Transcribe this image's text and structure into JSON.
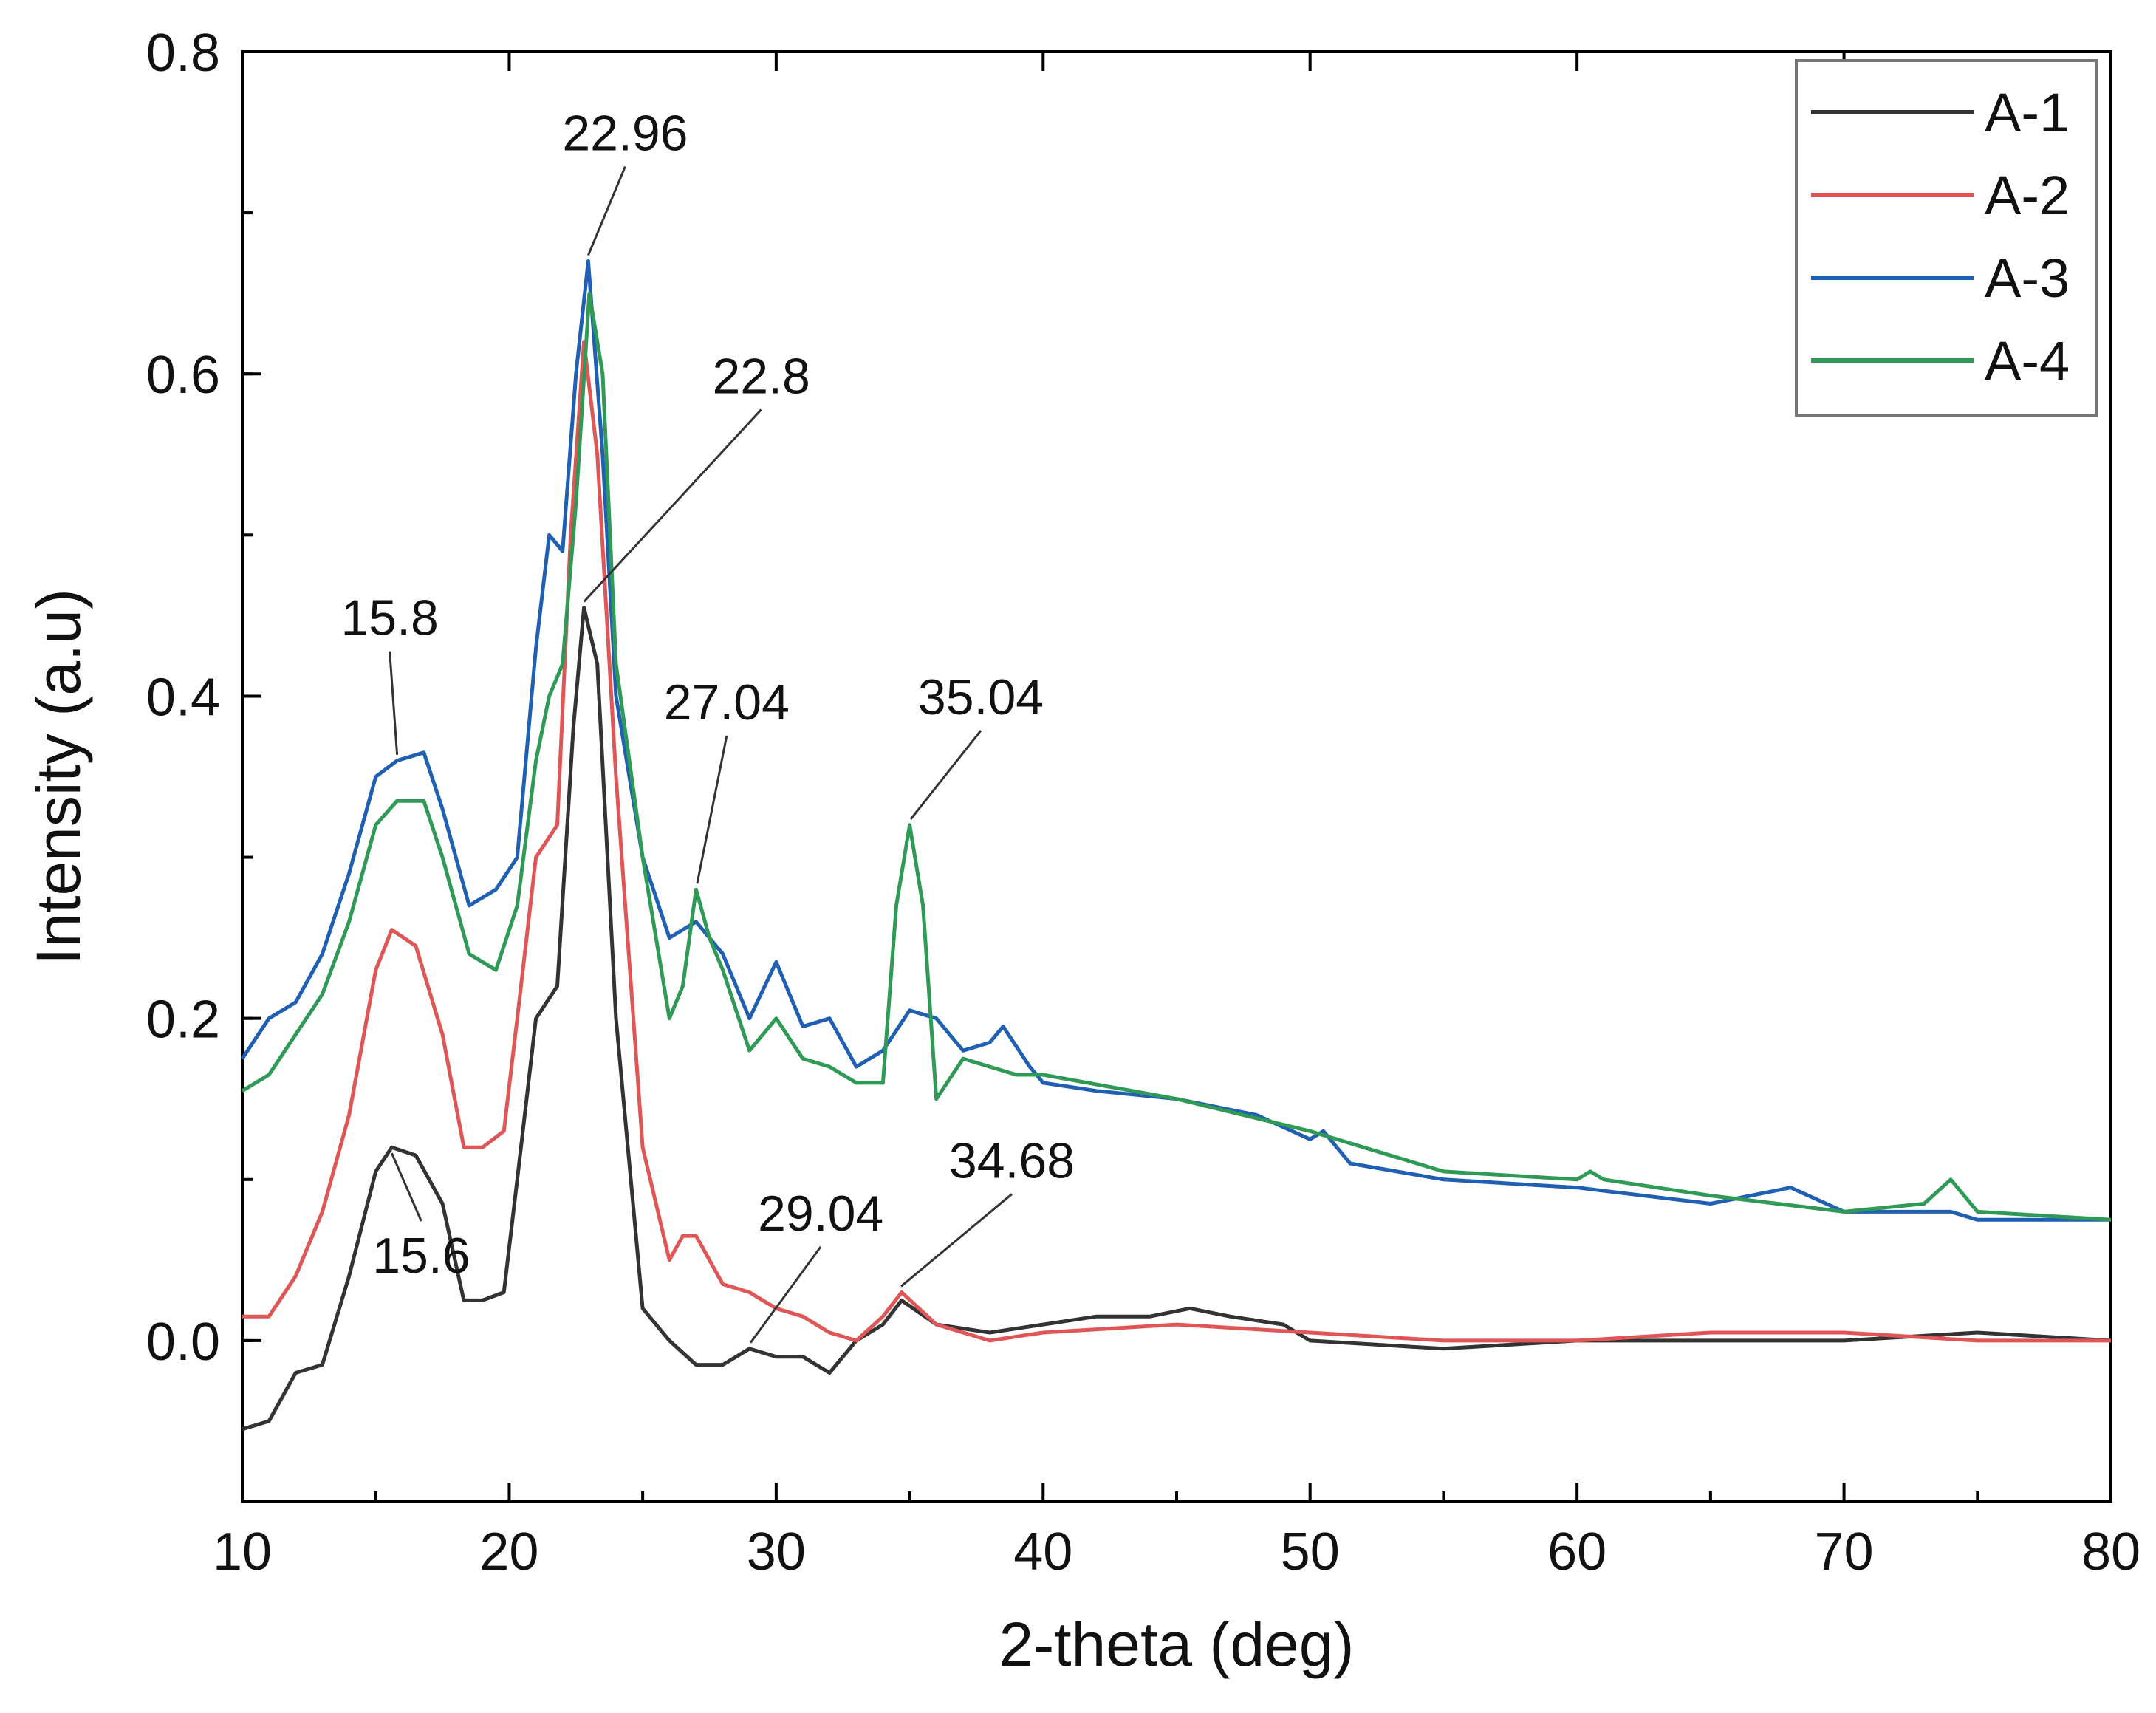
{
  "chart_data": {
    "type": "line",
    "xlabel": "2-theta (deg)",
    "ylabel": "Intensity (a.u)",
    "xlim": [
      10,
      80
    ],
    "ylim": [
      -0.1,
      0.8
    ],
    "xticks": [
      10,
      20,
      30,
      40,
      50,
      60,
      70,
      80
    ],
    "yticks": [
      0.0,
      0.2,
      0.4,
      0.6,
      0.8
    ],
    "ytick_labels": [
      "0.0",
      "0.2",
      "0.4",
      "0.6",
      "0.8"
    ],
    "legend": {
      "position": "top-right"
    },
    "series": [
      {
        "name": "A-1",
        "color": "#333333",
        "x": [
          10,
          11,
          12,
          13,
          14,
          15,
          15.6,
          16.5,
          17.5,
          18.3,
          19,
          19.8,
          20.3,
          21,
          21.8,
          22.4,
          22.8,
          23.3,
          24,
          25,
          26,
          27,
          28,
          29,
          30,
          31,
          32,
          33,
          34,
          34.7,
          36,
          38,
          40,
          42,
          44,
          45.5,
          47,
          49,
          50,
          55,
          60,
          65,
          70,
          75,
          80
        ],
        "y": [
          -0.055,
          -0.05,
          -0.02,
          -0.015,
          0.04,
          0.105,
          0.12,
          0.115,
          0.085,
          0.025,
          0.025,
          0.03,
          0.1,
          0.2,
          0.22,
          0.38,
          0.455,
          0.42,
          0.2,
          0.02,
          0.0,
          -0.015,
          -0.015,
          -0.005,
          -0.01,
          -0.01,
          -0.02,
          0.0,
          0.01,
          0.025,
          0.01,
          0.005,
          0.01,
          0.015,
          0.015,
          0.02,
          0.015,
          0.01,
          0.0,
          -0.005,
          0.0,
          0.0,
          0.0,
          0.005,
          0.0
        ]
      },
      {
        "name": "A-2",
        "color": "#e05555",
        "x": [
          10,
          11,
          12,
          13,
          14,
          15,
          15.6,
          16.5,
          17.5,
          18.3,
          19,
          19.8,
          20.3,
          21,
          21.8,
          22.3,
          22.8,
          23.3,
          24,
          25,
          26,
          26.5,
          27,
          28,
          29,
          30,
          31,
          32,
          33,
          34,
          34.7,
          36,
          38,
          40,
          45,
          50,
          55,
          60,
          65,
          70,
          75,
          80
        ],
        "y": [
          0.015,
          0.015,
          0.04,
          0.08,
          0.14,
          0.23,
          0.255,
          0.245,
          0.19,
          0.12,
          0.12,
          0.13,
          0.2,
          0.3,
          0.32,
          0.5,
          0.62,
          0.55,
          0.35,
          0.12,
          0.05,
          0.065,
          0.065,
          0.035,
          0.03,
          0.02,
          0.015,
          0.005,
          0.0,
          0.015,
          0.03,
          0.01,
          0.0,
          0.005,
          0.01,
          0.005,
          0.0,
          0.0,
          0.005,
          0.005,
          0.0,
          0.0
        ]
      },
      {
        "name": "A-3",
        "color": "#1f5fb4",
        "x": [
          10,
          11,
          12,
          13,
          14,
          15,
          15.8,
          16.8,
          17.5,
          18.5,
          19.5,
          20.3,
          21,
          21.5,
          22,
          22.5,
          22.96,
          23.5,
          24,
          25,
          26,
          27,
          28,
          29,
          30,
          31,
          32,
          33,
          34,
          35,
          36,
          37,
          38,
          38.5,
          39.5,
          40,
          42,
          45,
          48,
          50,
          50.5,
          51.5,
          55,
          60,
          65,
          68,
          70,
          74,
          75,
          80
        ],
        "y": [
          0.175,
          0.2,
          0.21,
          0.24,
          0.29,
          0.35,
          0.36,
          0.365,
          0.33,
          0.27,
          0.28,
          0.3,
          0.43,
          0.5,
          0.49,
          0.6,
          0.67,
          0.55,
          0.4,
          0.3,
          0.25,
          0.26,
          0.24,
          0.2,
          0.235,
          0.195,
          0.2,
          0.17,
          0.18,
          0.205,
          0.2,
          0.18,
          0.185,
          0.195,
          0.17,
          0.16,
          0.155,
          0.15,
          0.14,
          0.125,
          0.13,
          0.11,
          0.1,
          0.095,
          0.085,
          0.095,
          0.08,
          0.08,
          0.075,
          0.075
        ]
      },
      {
        "name": "A-4",
        "color": "#2f9a55",
        "x": [
          10,
          11,
          12,
          13,
          14,
          15,
          15.8,
          16.8,
          17.5,
          18.5,
          19.5,
          20.3,
          21,
          21.5,
          22,
          22.5,
          23,
          23.5,
          24,
          25,
          26,
          26.5,
          27,
          27.5,
          28,
          29,
          30,
          31,
          32,
          33,
          34,
          34.5,
          35,
          35.5,
          36,
          37,
          38,
          39,
          40,
          45,
          50,
          55,
          60,
          60.5,
          61,
          65,
          70,
          73,
          74,
          75,
          80
        ],
        "y": [
          0.155,
          0.165,
          0.19,
          0.215,
          0.26,
          0.32,
          0.335,
          0.335,
          0.3,
          0.24,
          0.23,
          0.27,
          0.36,
          0.4,
          0.42,
          0.52,
          0.65,
          0.6,
          0.42,
          0.3,
          0.2,
          0.22,
          0.28,
          0.25,
          0.23,
          0.18,
          0.2,
          0.175,
          0.17,
          0.16,
          0.16,
          0.27,
          0.32,
          0.27,
          0.15,
          0.175,
          0.17,
          0.165,
          0.165,
          0.15,
          0.13,
          0.105,
          0.1,
          0.105,
          0.1,
          0.09,
          0.08,
          0.085,
          0.1,
          0.08,
          0.075
        ]
      }
    ],
    "annotations": [
      {
        "text": "15.8",
        "x": 15.8,
        "y": 0.36
      },
      {
        "text": "22.96",
        "x": 22.96,
        "y": 0.67
      },
      {
        "text": "22.8",
        "x": 22.8,
        "y": 0.455
      },
      {
        "text": "27.04",
        "x": 27.04,
        "y": 0.28
      },
      {
        "text": "35.04",
        "x": 35.04,
        "y": 0.32
      },
      {
        "text": "15.6",
        "x": 15.6,
        "y": 0.12
      },
      {
        "text": "29.04",
        "x": 29.04,
        "y": -0.005
      },
      {
        "text": "34.68",
        "x": 34.68,
        "y": 0.03
      }
    ]
  }
}
